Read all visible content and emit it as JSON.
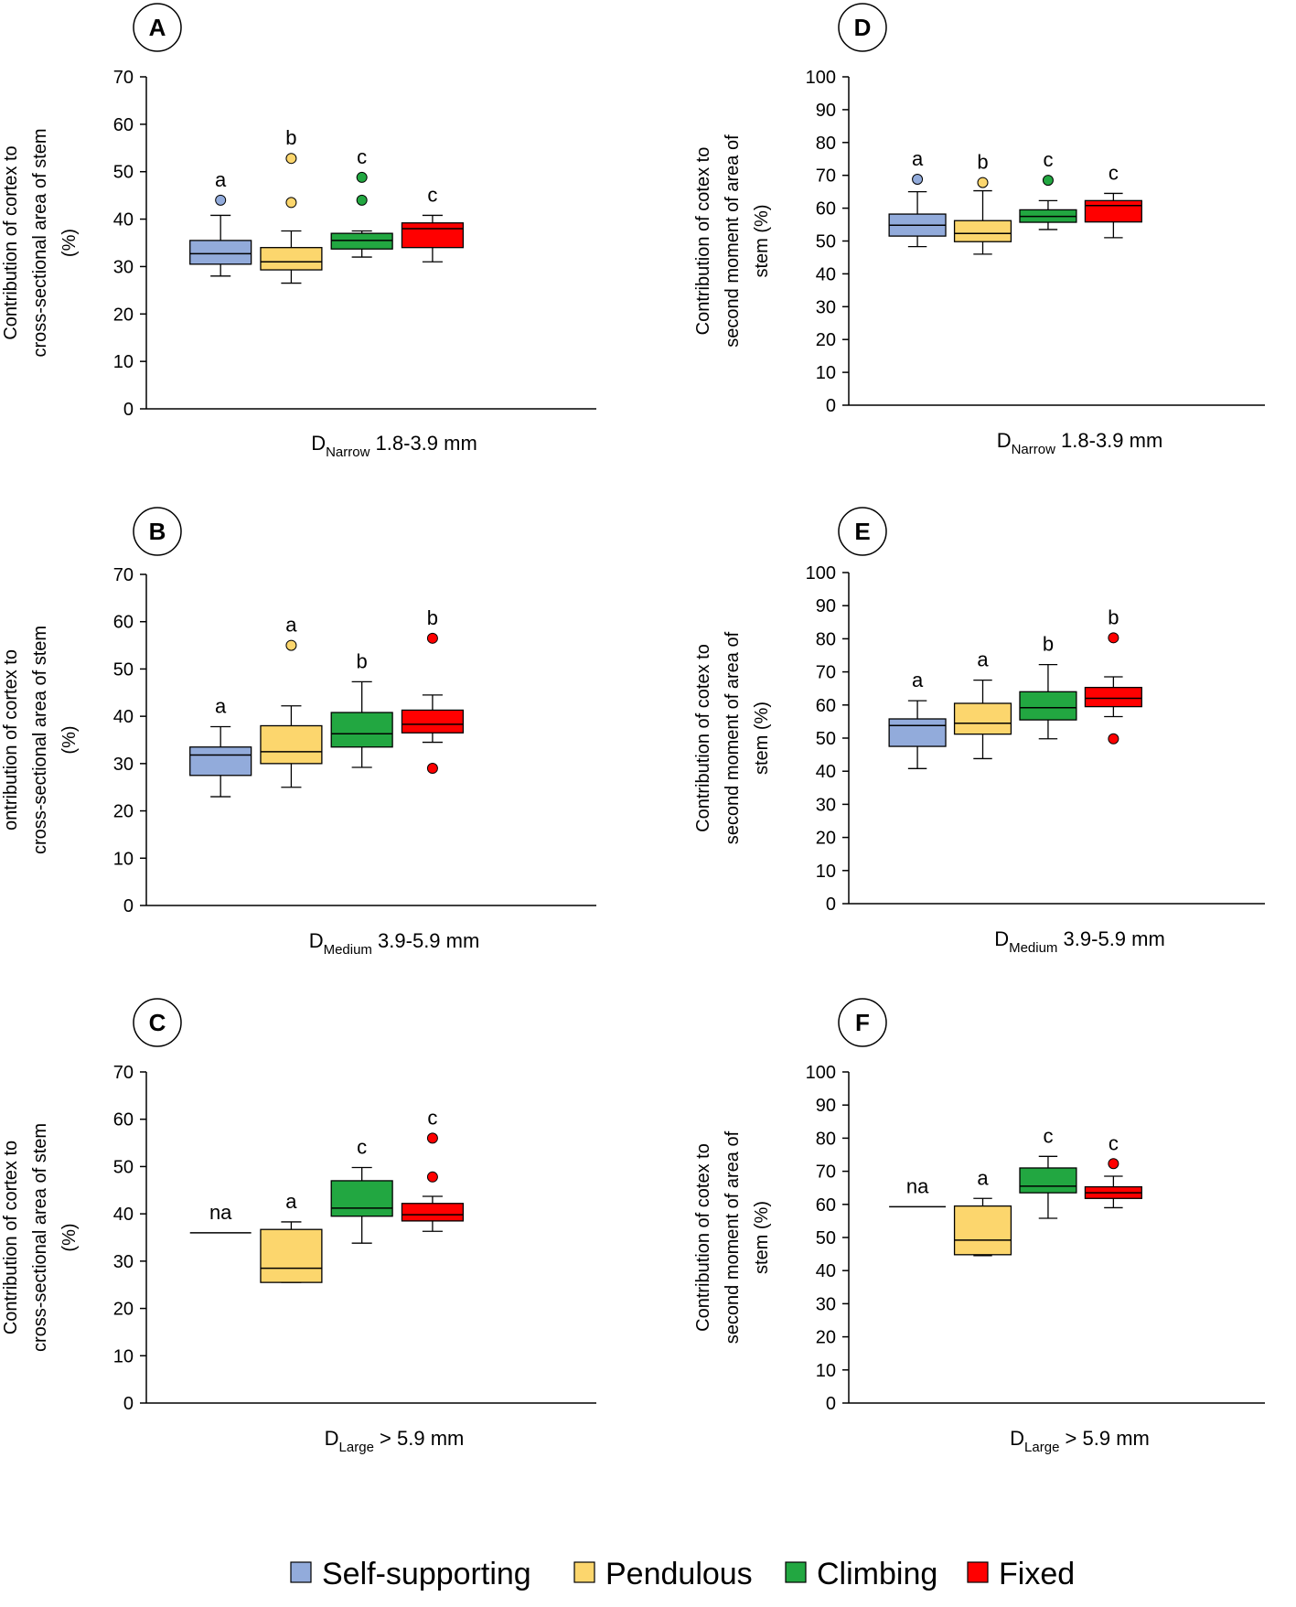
{
  "figure": {
    "legend": [
      {
        "name": "Self-supporting",
        "color": "#92ABDB"
      },
      {
        "name": "Pendulous",
        "color": "#FCD66D"
      },
      {
        "name": "Climbing",
        "color": "#22A741"
      },
      {
        "name": "Fixed",
        "color": "#FF0000"
      }
    ]
  },
  "chart_data": [
    {
      "panel": "A",
      "type": "box",
      "ylabel": [
        "Contribution of cortex to",
        "cross-sectional area of stem",
        "(%)"
      ],
      "xlabel_prefix": "D",
      "xlabel_sub": "Narrow",
      "xlabel_rest": " 1.8-3.9 mm",
      "ylim": [
        0,
        70
      ],
      "ytick_step": 10,
      "groups": [
        {
          "name": "Self-supporting",
          "color": "#92ABDB",
          "whisker_low": 28,
          "q1": 30.5,
          "median": 32.7,
          "q3": 35.5,
          "whisker_high": 40.8,
          "outliers": [
            44
          ],
          "letter": "a"
        },
        {
          "name": "Pendulous",
          "color": "#FCD66D",
          "whisker_low": 26.5,
          "q1": 29.3,
          "median": 31,
          "q3": 34,
          "whisker_high": 37.5,
          "outliers": [
            43.5,
            52.8
          ],
          "letter": "b"
        },
        {
          "name": "Climbing",
          "color": "#22A741",
          "whisker_low": 32,
          "q1": 33.7,
          "median": 35.5,
          "q3": 37,
          "whisker_high": 37.5,
          "outliers": [
            44,
            48.8
          ],
          "letter": "c"
        },
        {
          "name": "Fixed",
          "color": "#FF0000",
          "whisker_low": 31,
          "q1": 34,
          "median": 38,
          "q3": 39.2,
          "whisker_high": 40.8,
          "outliers": [],
          "letter": "c"
        }
      ]
    },
    {
      "panel": "B",
      "type": "box",
      "ylabel": [
        "ontribution of cortex to",
        "cross-sectional area of stem",
        "(%)"
      ],
      "xlabel_prefix": "D",
      "xlabel_sub": "Medium",
      "xlabel_rest": " 3.9-5.9 mm",
      "ylim": [
        0,
        70
      ],
      "ytick_step": 10,
      "groups": [
        {
          "name": "Self-supporting",
          "color": "#92ABDB",
          "whisker_low": 23,
          "q1": 27.5,
          "median": 31.8,
          "q3": 33.5,
          "whisker_high": 37.8,
          "outliers": [],
          "letter": "a"
        },
        {
          "name": "Pendulous",
          "color": "#FCD66D",
          "whisker_low": 25,
          "q1": 30,
          "median": 32.5,
          "q3": 38,
          "whisker_high": 42.2,
          "outliers": [
            55
          ],
          "letter": "a"
        },
        {
          "name": "Climbing",
          "color": "#22A741",
          "whisker_low": 29.2,
          "q1": 33.5,
          "median": 36.3,
          "q3": 40.8,
          "whisker_high": 47.3,
          "outliers": [],
          "letter": "b"
        },
        {
          "name": "Fixed",
          "color": "#FF0000",
          "whisker_low": 34.5,
          "q1": 36.5,
          "median": 38.3,
          "q3": 41.3,
          "whisker_high": 44.5,
          "outliers": [
            29,
            56.5
          ],
          "letter": "b"
        }
      ]
    },
    {
      "panel": "C",
      "type": "box",
      "ylabel": [
        "Contribution of cortex to",
        "cross-sectional area of stem",
        "(%)"
      ],
      "xlabel_prefix": "D",
      "xlabel_sub": "Large",
      "xlabel_rest": " > 5.9 mm",
      "ylim": [
        0,
        70
      ],
      "ytick_step": 10,
      "groups": [
        {
          "name": "Self-supporting",
          "color": "#92ABDB",
          "single_value": 36,
          "outliers": [],
          "letter": "na"
        },
        {
          "name": "Pendulous",
          "color": "#FCD66D",
          "whisker_low": 25.5,
          "q1": 25.5,
          "median": 28.5,
          "q3": 36.7,
          "whisker_high": 38.3,
          "outliers": [],
          "letter": "a"
        },
        {
          "name": "Climbing",
          "color": "#22A741",
          "whisker_low": 33.8,
          "q1": 39.5,
          "median": 41.2,
          "q3": 47,
          "whisker_high": 49.8,
          "outliers": [],
          "letter": "c"
        },
        {
          "name": "Fixed",
          "color": "#FF0000",
          "whisker_low": 36.3,
          "q1": 38.5,
          "median": 39.8,
          "q3": 42.2,
          "whisker_high": 43.7,
          "outliers": [
            47.8,
            56
          ],
          "letter": "c"
        }
      ]
    },
    {
      "panel": "D",
      "type": "box",
      "ylabel": [
        "Contribution of cotex to",
        "second moment of area of",
        "stem (%)"
      ],
      "xlabel_prefix": "D",
      "xlabel_sub": "Narrow",
      "xlabel_rest": " 1.8-3.9 mm",
      "ylim": [
        0,
        100
      ],
      "ytick_step": 10,
      "groups": [
        {
          "name": "Self-supporting",
          "color": "#92ABDB",
          "whisker_low": 48.3,
          "q1": 51.5,
          "median": 54.8,
          "q3": 58.2,
          "whisker_high": 65,
          "outliers": [
            68.8
          ],
          "letter": "a"
        },
        {
          "name": "Pendulous",
          "color": "#FCD66D",
          "whisker_low": 46,
          "q1": 49.8,
          "median": 52.3,
          "q3": 56.2,
          "whisker_high": 65.3,
          "outliers": [
            67.8
          ],
          "letter": "b"
        },
        {
          "name": "Climbing",
          "color": "#22A741",
          "whisker_low": 53.5,
          "q1": 55.7,
          "median": 57.5,
          "q3": 59.5,
          "whisker_high": 62.3,
          "outliers": [
            68.5
          ],
          "letter": "c"
        },
        {
          "name": "Fixed",
          "color": "#FF0000",
          "whisker_low": 51,
          "q1": 55.8,
          "median": 60.8,
          "q3": 62.3,
          "whisker_high": 64.5,
          "outliers": [],
          "letter": "c"
        }
      ]
    },
    {
      "panel": "E",
      "type": "box",
      "ylabel": [
        "Contribution of cotex to",
        "second moment of area of",
        "stem (%)"
      ],
      "xlabel_prefix": "D",
      "xlabel_sub": "Medium",
      "xlabel_rest": " 3.9-5.9 mm",
      "ylim": [
        0,
        100
      ],
      "ytick_step": 10,
      "groups": [
        {
          "name": "Self-supporting",
          "color": "#92ABDB",
          "whisker_low": 40.8,
          "q1": 47.5,
          "median": 53.8,
          "q3": 55.8,
          "whisker_high": 61.3,
          "outliers": [],
          "letter": "a"
        },
        {
          "name": "Pendulous",
          "color": "#FCD66D",
          "whisker_low": 43.8,
          "q1": 51.2,
          "median": 54.5,
          "q3": 60.5,
          "whisker_high": 67.5,
          "outliers": [],
          "letter": "a"
        },
        {
          "name": "Climbing",
          "color": "#22A741",
          "whisker_low": 49.8,
          "q1": 55.5,
          "median": 59.2,
          "q3": 64,
          "whisker_high": 72.2,
          "outliers": [],
          "letter": "b"
        },
        {
          "name": "Fixed",
          "color": "#FF0000",
          "whisker_low": 56.5,
          "q1": 59.5,
          "median": 62,
          "q3": 65.3,
          "whisker_high": 68.5,
          "outliers": [
            49.8,
            80.3
          ],
          "letter": "b"
        }
      ]
    },
    {
      "panel": "F",
      "type": "box",
      "ylabel": [
        "Contribution of cotex to",
        "second moment of area of",
        "stem (%)"
      ],
      "xlabel_prefix": "D",
      "xlabel_sub": "Large",
      "xlabel_rest": " > 5.9 mm",
      "ylim": [
        0,
        100
      ],
      "ytick_step": 10,
      "groups": [
        {
          "name": "Self-supporting",
          "color": "#92ABDB",
          "single_value": 59.3,
          "outliers": [],
          "letter": "na"
        },
        {
          "name": "Pendulous",
          "color": "#FCD66D",
          "whisker_low": 44.5,
          "q1": 44.8,
          "median": 49.2,
          "q3": 59.5,
          "whisker_high": 61.8,
          "outliers": [],
          "letter": "a"
        },
        {
          "name": "Climbing",
          "color": "#22A741",
          "whisker_low": 55.8,
          "q1": 63.5,
          "median": 65.5,
          "q3": 71,
          "whisker_high": 74.5,
          "outliers": [],
          "letter": "c"
        },
        {
          "name": "Fixed",
          "color": "#FF0000",
          "whisker_low": 59,
          "q1": 61.8,
          "median": 63.5,
          "q3": 65.3,
          "whisker_high": 68.5,
          "outliers": [
            72.3
          ],
          "letter": "c"
        }
      ]
    }
  ]
}
